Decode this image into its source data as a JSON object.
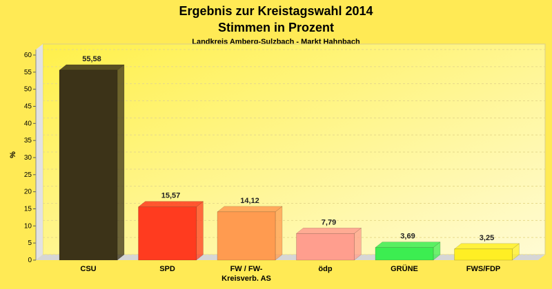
{
  "chart_data": {
    "type": "bar",
    "title": "Ergebnis zur Kreistagswahl 2014",
    "subtitle_line": "Stimmen in Prozent",
    "subtitle": "Landkreis Amberg-Sulzbach - Markt Hahnbach",
    "ylabel": "%",
    "ylim": [
      0,
      60
    ],
    "yticks": [
      0,
      5,
      10,
      15,
      20,
      25,
      30,
      35,
      40,
      45,
      50,
      55,
      60
    ],
    "grid": true,
    "categories": [
      [
        "CSU"
      ],
      [
        "SPD"
      ],
      [
        "FW / FW-",
        "Kreisverb. AS"
      ],
      [
        "ödp"
      ],
      [
        "GRÜNE"
      ],
      [
        "FWS/FDP"
      ]
    ],
    "values": [
      55.58,
      15.57,
      14.12,
      7.79,
      3.69,
      3.25
    ],
    "value_labels": [
      "55,58",
      "15,57",
      "14,12",
      "7,79",
      "3,69",
      "3,25"
    ],
    "colors": [
      "#3c3318",
      "#ff3b1f",
      "#ff9b50",
      "#ff9e8e",
      "#3ced51",
      "#ffef24"
    ]
  }
}
